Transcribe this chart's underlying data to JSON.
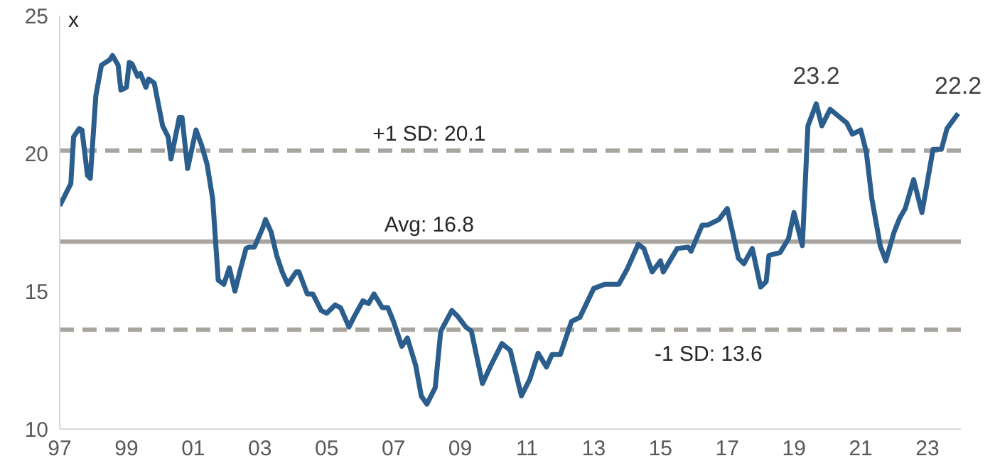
{
  "chart_data": {
    "type": "line",
    "ylabel": "x",
    "x": [
      "1997-01",
      "1997-05",
      "1997-06",
      "1997-08",
      "1997-09",
      "1997-11",
      "1997-12",
      "1998-02",
      "1998-04",
      "1998-07",
      "1998-08",
      "1998-10",
      "1998-11",
      "1999-01",
      "1999-02",
      "1999-03",
      "1999-05",
      "1999-06",
      "1999-08",
      "1999-09",
      "1999-11",
      "2000-02",
      "2000-04",
      "2000-05",
      "2000-08",
      "2000-09",
      "2000-11",
      "2001-02",
      "2001-04",
      "2001-06",
      "2001-08",
      "2001-10",
      "2001-12",
      "2002-02",
      "2002-04",
      "2002-06",
      "2002-08",
      "2002-09",
      "2002-11",
      "2003-02",
      "2003-03",
      "2003-05",
      "2003-07",
      "2003-09",
      "2003-11",
      "2004-02",
      "2004-03",
      "2004-06",
      "2004-08",
      "2004-11",
      "2005-01",
      "2005-04",
      "2005-06",
      "2005-09",
      "2005-11",
      "2006-02",
      "2006-04",
      "2006-06",
      "2006-09",
      "2006-11",
      "2007-01",
      "2007-04",
      "2007-06",
      "2007-09",
      "2007-11",
      "2008-01",
      "2008-04",
      "2008-06",
      "2008-10",
      "2008-12",
      "2009-03",
      "2009-05",
      "2009-09",
      "2009-12",
      "2010-04",
      "2010-07",
      "2010-11",
      "2011-02",
      "2011-05",
      "2011-08",
      "2011-10",
      "2012-01",
      "2012-05",
      "2012-08",
      "2013-01",
      "2013-05",
      "2013-10",
      "2014-01",
      "2014-05",
      "2014-07",
      "2014-10",
      "2015-01",
      "2015-02",
      "2015-07",
      "2015-11",
      "2015-12",
      "2016-04",
      "2016-06",
      "2016-10",
      "2017-01",
      "2017-05",
      "2017-07",
      "2017-10",
      "2018-01",
      "2018-03",
      "2018-04",
      "2018-08",
      "2018-11",
      "2019-01",
      "2019-04",
      "2019-06",
      "2019-09",
      "2019-11",
      "2020-02",
      "2020-05",
      "2020-08",
      "2020-10",
      "2021-01",
      "2021-03",
      "2021-05",
      "2021-08",
      "2021-10",
      "2022-01",
      "2022-03",
      "2022-05",
      "2022-08",
      "2022-11",
      "2023-03",
      "2023-06",
      "2023-08",
      "2023-12"
    ],
    "series": [
      {
        "color": "#2b5e8c",
        "values": [
          18.1,
          18.9,
          20.6,
          20.9,
          20.85,
          19.2,
          19.1,
          22.1,
          23.2,
          23.4,
          23.55,
          23.2,
          22.3,
          22.4,
          23.3,
          23.25,
          22.8,
          22.9,
          22.4,
          22.7,
          22.55,
          21.0,
          20.6,
          19.8,
          21.3,
          21.3,
          19.45,
          20.85,
          20.3,
          19.6,
          18.35,
          15.4,
          15.25,
          15.85,
          15.0,
          15.8,
          16.55,
          16.6,
          16.6,
          17.3,
          17.6,
          17.15,
          16.3,
          15.7,
          15.25,
          15.7,
          15.7,
          14.9,
          14.9,
          14.3,
          14.2,
          14.5,
          14.4,
          13.7,
          14.1,
          14.65,
          14.55,
          14.9,
          14.4,
          14.4,
          13.9,
          13.0,
          13.3,
          12.3,
          11.2,
          10.9,
          11.5,
          13.55,
          14.3,
          14.1,
          13.7,
          13.55,
          11.65,
          12.3,
          13.1,
          12.85,
          11.2,
          11.8,
          12.75,
          12.25,
          12.7,
          12.7,
          13.9,
          14.05,
          15.1,
          15.25,
          15.25,
          15.8,
          16.7,
          16.55,
          15.7,
          16.1,
          15.7,
          16.55,
          16.6,
          16.45,
          17.4,
          17.4,
          17.6,
          18.0,
          16.2,
          16.0,
          16.55,
          15.15,
          15.35,
          16.3,
          16.4,
          16.9,
          17.85,
          16.65,
          21.0,
          21.8,
          21.0,
          21.6,
          21.35,
          21.1,
          20.7,
          20.85,
          20.05,
          18.35,
          16.65,
          16.1,
          17.15,
          17.65,
          18.0,
          19.05,
          17.85,
          20.15,
          20.15,
          20.9,
          21.45
        ]
      }
    ],
    "xlim": [
      "1997-01",
      "2024-01"
    ],
    "xticks": [
      {
        "value": "1997",
        "label": "97"
      },
      {
        "value": "1999",
        "label": "99"
      },
      {
        "value": "2001",
        "label": "01"
      },
      {
        "value": "2003",
        "label": "03"
      },
      {
        "value": "2005",
        "label": "05"
      },
      {
        "value": "2007",
        "label": "07"
      },
      {
        "value": "2009",
        "label": "09"
      },
      {
        "value": "2011",
        "label": "11"
      },
      {
        "value": "2013",
        "label": "13"
      },
      {
        "value": "2015",
        "label": "15"
      },
      {
        "value": "2017",
        "label": "17"
      },
      {
        "value": "2019",
        "label": "19"
      },
      {
        "value": "2021",
        "label": "21"
      },
      {
        "value": "2023",
        "label": "23"
      }
    ],
    "ylim": [
      10,
      25
    ],
    "yticks": [
      10,
      15,
      20,
      25
    ],
    "ref_lines": [
      {
        "axis": "y",
        "value": 20.1,
        "label": "+1 SD: 20.1",
        "color": "#a8a4a0",
        "line_style": "dashed"
      },
      {
        "axis": "y",
        "value": 16.8,
        "label": "Avg: 16.8",
        "color": "#a8a4a0",
        "line_style": "solid"
      },
      {
        "axis": "y",
        "value": 13.6,
        "label": "-1 SD: 13.6",
        "color": "#a8a4a0",
        "line_style": "dashed"
      }
    ],
    "annotations": [
      {
        "text": "23.2",
        "x": "2019-09",
        "y": 21.8
      },
      {
        "text": "22.2",
        "x": "2023-12",
        "y": 21.45
      }
    ],
    "grid": false,
    "legend": false,
    "marker": "none",
    "line_style": "solid"
  }
}
